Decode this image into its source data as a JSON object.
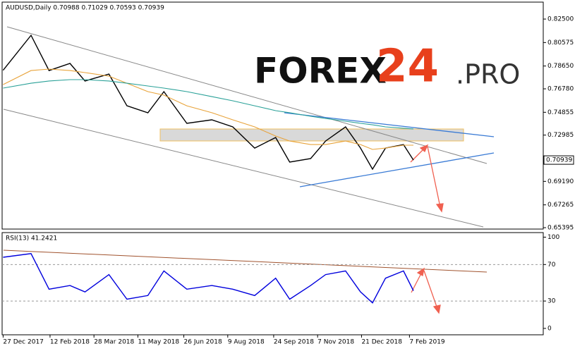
{
  "logo": {
    "main": "FOREX",
    "number": "24",
    "suffix": ".PRO"
  },
  "chart_data": [
    {
      "type": "line",
      "title": "AUDUSD,Daily  0.70988 0.71029 0.70593 0.70939",
      "last_price_label": "0.70939",
      "x": [
        "27 Dec 2017",
        "24 Jan 2018",
        "11 Feb 2018",
        "4 Mar 2018",
        "19 Mar 2018",
        "12 Apr 2018",
        "30 Apr 2018",
        "21 May 2018",
        "6 Jun 2018",
        "29 Jun 2018",
        "24 Jul 2018",
        "14 Aug 2018",
        "5 Sep 2018",
        "26 Sep 2018",
        "10 Oct 2018",
        "31 Oct 2018",
        "15 Nov 2018",
        "5 Dec 2018",
        "20 Dec 2018",
        "1 Jan 2019",
        "14 Jan 2019",
        "1 Feb 2019",
        "11 Feb 2019"
      ],
      "xlim": [
        "26 Dec 2017",
        "21 Jun 2019"
      ],
      "series": [
        {
          "color": "#000000",
          "values": [
            0.783,
            0.8117,
            0.7828,
            0.7886,
            0.7742,
            0.7799,
            0.7539,
            0.7481,
            0.7655,
            0.7395,
            0.7424,
            0.7366,
            0.7192,
            0.7279,
            0.7077,
            0.7106,
            0.725,
            0.7366,
            0.7192,
            0.7019,
            0.7192,
            0.7221,
            0.70939
          ]
        },
        {
          "color": "#e8a33a",
          "values": [
            0.7713,
            0.7828,
            0.784,
            0.7828,
            0.7811,
            0.7782,
            0.7724,
            0.7655,
            0.7626,
            0.7539,
            0.7482,
            0.7424,
            0.7366,
            0.7291,
            0.725,
            0.7221,
            0.7221,
            0.725,
            0.7221,
            0.7181,
            0.7192,
            0.7216,
            0.7216
          ]
        },
        {
          "color": "#2aa198",
          "values": [
            0.7684,
            0.7724,
            0.7742,
            0.7753,
            0.7753,
            0.7742,
            0.7724,
            0.7701,
            0.7684,
            0.7655,
            0.7614,
            0.758,
            0.7539,
            0.7499,
            0.7482,
            0.7453,
            0.7435,
            0.7412,
            0.7395,
            0.7383,
            0.7366,
            0.7355,
            0.7349
          ]
        }
      ],
      "ylim": [
        0.6528,
        0.8389
      ],
      "yticks": [
        {
          "value": 0.825,
          "label": "0.82500"
        },
        0.80575,
        {
          "value": 0.7865,
          "label": "0.78650"
        },
        {
          "value": 0.7678,
          "label": "0.76780"
        },
        0.74855,
        0.72985,
        {
          "value": 0.6919,
          "label": "0.69190"
        },
        0.67265,
        0.65395
      ]
    },
    {
      "type": "line",
      "title": "RSI(13) 41.2421",
      "x": [
        "27 Dec 2017",
        "24 Jan 2018",
        "11 Feb 2018",
        "4 Mar 2018",
        "19 Mar 2018",
        "12 Apr 2018",
        "30 Apr 2018",
        "21 May 2018",
        "6 Jun 2018",
        "29 Jun 2018",
        "24 Jul 2018",
        "14 Aug 2018",
        "5 Sep 2018",
        "26 Sep 2018",
        "10 Oct 2018",
        "31 Oct 2018",
        "15 Nov 2018",
        "5 Dec 2018",
        "20 Dec 2018",
        "1 Jan 2019",
        "14 Jan 2019",
        "1 Feb 2019",
        "11 Feb 2019"
      ],
      "xlim": [
        "26 Dec 2017",
        "21 Jun 2019"
      ],
      "series": [
        {
          "color": "#0000dd",
          "values": [
            78,
            82,
            43,
            47,
            40,
            59,
            32,
            36,
            63,
            43,
            47,
            43,
            36,
            55,
            32,
            47,
            59,
            63,
            40,
            28,
            55,
            63,
            41.2421
          ]
        }
      ],
      "ylim": [
        -7,
        105
      ],
      "yticks": [
        100,
        70,
        30,
        0
      ],
      "levels": [
        70,
        30
      ],
      "xticks": [
        "27 Dec 2017",
        "12 Feb 2018",
        "28 Mar 2018",
        "11 May 2018",
        "26 Jun 2018",
        "9 Aug 2018",
        "24 Sep 2018",
        "7 Nov 2018",
        "21 Dec 2018",
        "7 Feb 2019"
      ]
    }
  ]
}
